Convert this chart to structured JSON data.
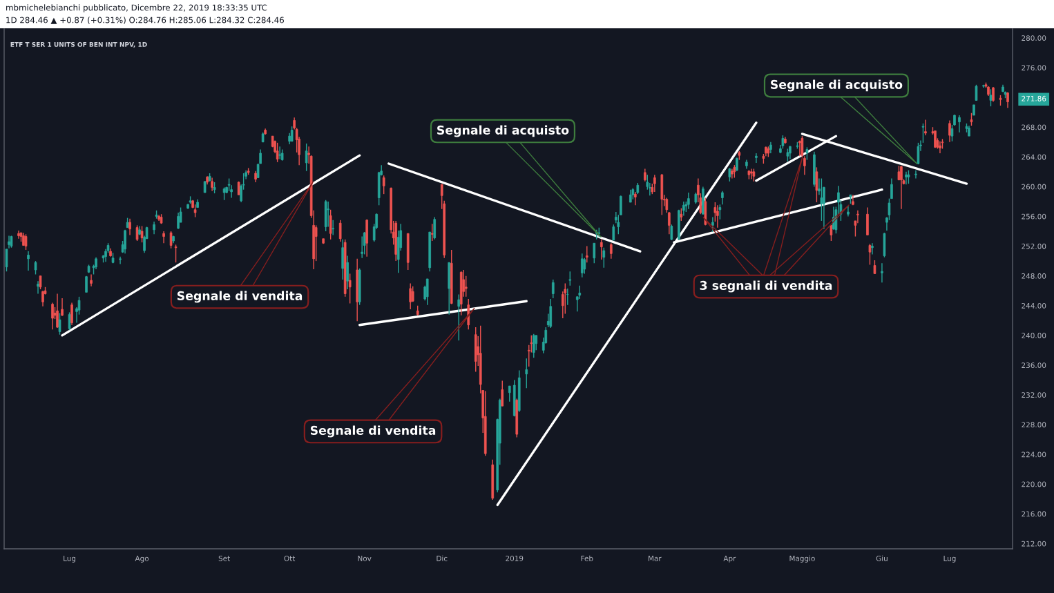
{
  "chart_data": {
    "type": "candlestick",
    "title": "ETF T SER 1 UNITS OF BEN INT NPV, 1D",
    "x": [
      "2018-06-06",
      "2018-06-07",
      "2018-06-08",
      "2018-06-11",
      "2018-06-12",
      "2018-06-13",
      "2018-06-14",
      "2018-06-15",
      "2018-06-18",
      "2018-06-19",
      "2018-06-20",
      "2018-06-21",
      "2018-06-22",
      "2018-06-25",
      "2018-06-26",
      "2018-06-27",
      "2018-06-28",
      "2018-06-29",
      "2018-07-02",
      "2018-07-03",
      "2018-07-05",
      "2018-07-06",
      "2018-07-09",
      "2018-07-10",
      "2018-07-11",
      "2018-07-12",
      "2018-07-13",
      "2018-07-16",
      "2018-07-17",
      "2018-07-18",
      "2018-07-19",
      "2018-07-20",
      "2018-07-23",
      "2018-07-24",
      "2018-07-25",
      "2018-07-26",
      "2018-07-27",
      "2018-07-30",
      "2018-07-31",
      "2018-08-01",
      "2018-08-02",
      "2018-08-03",
      "2018-08-06",
      "2018-08-07",
      "2018-08-08",
      "2018-08-09",
      "2018-08-10",
      "2018-08-13",
      "2018-08-14",
      "2018-08-15",
      "2018-08-16",
      "2018-08-17",
      "2018-08-20",
      "2018-08-21",
      "2018-08-22",
      "2018-08-23",
      "2018-08-24",
      "2018-08-27",
      "2018-08-28",
      "2018-08-29",
      "2018-08-30",
      "2018-08-31",
      "2018-09-04",
      "2018-09-05",
      "2018-09-06",
      "2018-09-07",
      "2018-09-10",
      "2018-09-11",
      "2018-09-12",
      "2018-09-13",
      "2018-09-14",
      "2018-09-17",
      "2018-09-18",
      "2018-09-19",
      "2018-09-20",
      "2018-09-21",
      "2018-09-24",
      "2018-09-25",
      "2018-09-26",
      "2018-09-27",
      "2018-09-28",
      "2018-10-01",
      "2018-10-02",
      "2018-10-03",
      "2018-10-04",
      "2018-10-05",
      "2018-10-08",
      "2018-10-09",
      "2018-10-10",
      "2018-10-11",
      "2018-10-12",
      "2018-10-15",
      "2018-10-16",
      "2018-10-17",
      "2018-10-18",
      "2018-10-19",
      "2018-10-22",
      "2018-10-23",
      "2018-10-24",
      "2018-10-25",
      "2018-10-26",
      "2018-10-29",
      "2018-10-30",
      "2018-10-31",
      "2018-11-01",
      "2018-11-02",
      "2018-11-05",
      "2018-11-06",
      "2018-11-07",
      "2018-11-08",
      "2018-11-09",
      "2018-11-12",
      "2018-11-13",
      "2018-11-14",
      "2018-11-15",
      "2018-11-16",
      "2018-11-19",
      "2018-11-20",
      "2018-11-21",
      "2018-11-23",
      "2018-11-26",
      "2018-11-27",
      "2018-11-28",
      "2018-11-29",
      "2018-11-30",
      "2018-12-03",
      "2018-12-04",
      "2018-12-06",
      "2018-12-07",
      "2018-12-10",
      "2018-12-11",
      "2018-12-12",
      "2018-12-13",
      "2018-12-14",
      "2018-12-17",
      "2018-12-18",
      "2018-12-19",
      "2018-12-20",
      "2018-12-21",
      "2018-12-24",
      "2018-12-26",
      "2018-12-27",
      "2018-12-28",
      "2018-12-31",
      "2019-01-02",
      "2019-01-03",
      "2019-01-04",
      "2019-01-07",
      "2019-01-08",
      "2019-01-09",
      "2019-01-10",
      "2019-01-11",
      "2019-01-14",
      "2019-01-15",
      "2019-01-16",
      "2019-01-17",
      "2019-01-18",
      "2019-01-22",
      "2019-01-23",
      "2019-01-24",
      "2019-01-25",
      "2019-01-28",
      "2019-01-29",
      "2019-01-30",
      "2019-01-31",
      "2019-02-01",
      "2019-02-04",
      "2019-02-05",
      "2019-02-06",
      "2019-02-07",
      "2019-02-08",
      "2019-02-11",
      "2019-02-12",
      "2019-02-13",
      "2019-02-14",
      "2019-02-15",
      "2019-02-19",
      "2019-02-20",
      "2019-02-21",
      "2019-02-22",
      "2019-02-25",
      "2019-02-26",
      "2019-02-27",
      "2019-02-28",
      "2019-03-01",
      "2019-03-04",
      "2019-03-05",
      "2019-03-06",
      "2019-03-07",
      "2019-03-08",
      "2019-03-11",
      "2019-03-12",
      "2019-03-13",
      "2019-03-14",
      "2019-03-15",
      "2019-03-18",
      "2019-03-19",
      "2019-03-20",
      "2019-03-21",
      "2019-03-22",
      "2019-03-25",
      "2019-03-26",
      "2019-03-27",
      "2019-03-28",
      "2019-03-29",
      "2019-04-01",
      "2019-04-02",
      "2019-04-03",
      "2019-04-04",
      "2019-04-05",
      "2019-04-08",
      "2019-04-09",
      "2019-04-10",
      "2019-04-11",
      "2019-04-12",
      "2019-04-15",
      "2019-04-16",
      "2019-04-17",
      "2019-04-18",
      "2019-04-22",
      "2019-04-23",
      "2019-04-24",
      "2019-04-25",
      "2019-04-26",
      "2019-04-29",
      "2019-04-30",
      "2019-05-01",
      "2019-05-02",
      "2019-05-03",
      "2019-05-06",
      "2019-05-07",
      "2019-05-08",
      "2019-05-09",
      "2019-05-10",
      "2019-05-13",
      "2019-05-14",
      "2019-05-15",
      "2019-05-16",
      "2019-05-17",
      "2019-05-20",
      "2019-05-21",
      "2019-05-22",
      "2019-05-23",
      "2019-05-24",
      "2019-05-28",
      "2019-05-29",
      "2019-05-30",
      "2019-05-31",
      "2019-06-03",
      "2019-06-04",
      "2019-06-05",
      "2019-06-06",
      "2019-06-07",
      "2019-06-10",
      "2019-06-11",
      "2019-06-12",
      "2019-06-13",
      "2019-06-14",
      "2019-06-17",
      "2019-06-18",
      "2019-06-19",
      "2019-06-20",
      "2019-06-21",
      "2019-06-24",
      "2019-06-25",
      "2019-06-26",
      "2019-06-27",
      "2019-06-28",
      "2019-07-01",
      "2019-07-02",
      "2019-07-03",
      "2019-07-05",
      "2019-07-08",
      "2019-07-09",
      "2019-07-10",
      "2019-07-11",
      "2019-07-12",
      "2019-07-15",
      "2019-07-16",
      "2019-07-17",
      "2019-07-18",
      "2019-07-19",
      "2019-07-22",
      "2019-07-23",
      "2019-07-24",
      "2019-07-25"
    ],
    "ohlc": [
      [
        249.2,
        251.6,
        248.6,
        251.6
      ],
      [
        252.2,
        253.4,
        251.7,
        252.6
      ],
      [
        252.0,
        253.4,
        251.8,
        253.3
      ],
      [
        253.7,
        254.1,
        253.0,
        253.4
      ],
      [
        253.8,
        253.8,
        252.6,
        253.3
      ],
      [
        253.4,
        253.8,
        252.1,
        252.1
      ],
      [
        253.3,
        253.6,
        251.5,
        252.0
      ],
      [
        250.3,
        251.3,
        248.7,
        250.8
      ],
      [
        248.8,
        250.0,
        248.2,
        249.8
      ],
      [
        246.6,
        247.3,
        245.6,
        246.9
      ],
      [
        248.0,
        248.0,
        246.2,
        246.5
      ],
      [
        245.9,
        246.0,
        243.9,
        244.5
      ],
      [
        246.0,
        246.5,
        245.5,
        245.6
      ],
      [
        244.2,
        244.4,
        240.8,
        242.3
      ],
      [
        243.0,
        243.8,
        242.2,
        242.7
      ],
      [
        243.3,
        245.6,
        241.0,
        241.1
      ],
      [
        240.5,
        243.0,
        240.1,
        242.1
      ],
      [
        243.5,
        245.0,
        242.6,
        242.7
      ],
      [
        240.9,
        243.1,
        240.7,
        242.8
      ],
      [
        244.1,
        244.4,
        241.4,
        241.7
      ],
      [
        243.2,
        243.8,
        241.7,
        243.6
      ],
      [
        243.4,
        245.2,
        242.8,
        244.7
      ],
      [
        245.8,
        248.0,
        245.8,
        247.9
      ],
      [
        248.5,
        249.5,
        248.4,
        249.3
      ],
      [
        247.4,
        248.2,
        246.6,
        247.0
      ],
      [
        249.1,
        249.5,
        248.2,
        249.3
      ],
      [
        249.2,
        250.5,
        248.9,
        250.3
      ],
      [
        250.4,
        250.8,
        249.8,
        250.7
      ],
      [
        250.6,
        251.6,
        249.9,
        251.3
      ],
      [
        251.4,
        252.4,
        251.1,
        252.1
      ],
      [
        251.3,
        251.7,
        250.6,
        250.7
      ],
      [
        249.8,
        251.1,
        249.7,
        250.4
      ],
      [
        250.2,
        250.6,
        249.6,
        250.3
      ],
      [
        251.2,
        252.7,
        251.1,
        252.2
      ],
      [
        251.6,
        254.2,
        251.0,
        254.1
      ],
      [
        254.5,
        255.8,
        254.5,
        255.2
      ],
      [
        255.2,
        255.7,
        253.5,
        254.3
      ],
      [
        254.5,
        254.8,
        252.7,
        252.9
      ],
      [
        253.6,
        254.7,
        253.5,
        254.2
      ],
      [
        254.0,
        254.7,
        252.5,
        253.1
      ],
      [
        251.4,
        253.4,
        251.1,
        253.2
      ],
      [
        253.0,
        254.6,
        253.0,
        254.5
      ],
      [
        254.2,
        255.3,
        253.6,
        254.9
      ],
      [
        256.0,
        256.8,
        255.7,
        256.2
      ],
      [
        256.0,
        256.2,
        255.4,
        255.6
      ],
      [
        255.9,
        256.3,
        255.0,
        255.1
      ],
      [
        253.7,
        254.0,
        252.4,
        253.3
      ],
      [
        253.8,
        254.0,
        251.7,
        252.1
      ],
      [
        252.7,
        253.4,
        252.4,
        253.3
      ],
      [
        251.9,
        252.2,
        249.8,
        251.8
      ],
      [
        254.4,
        256.5,
        254.3,
        256.0
      ],
      [
        255.2,
        257.2,
        255.2,
        256.6
      ],
      [
        257.1,
        257.7,
        257.0,
        257.6
      ],
      [
        257.9,
        258.7,
        257.7,
        258.1
      ],
      [
        258.1,
        258.2,
        257.1,
        257.2
      ],
      [
        256.9,
        257.6,
        255.9,
        256.5
      ],
      [
        257.2,
        258.3,
        257.2,
        257.9
      ],
      [
        259.2,
        260.7,
        259.2,
        260.7
      ],
      [
        261.3,
        261.4,
        260.3,
        260.6
      ],
      [
        260.8,
        261.8,
        260.7,
        261.4
      ],
      [
        260.7,
        261.2,
        259.4,
        259.9
      ],
      [
        259.6,
        260.6,
        259.1,
        259.9
      ],
      [
        259.2,
        259.9,
        258.2,
        259.7
      ],
      [
        259.2,
        260.0,
        259.1,
        259.9
      ],
      [
        260.2,
        261.1,
        259.4,
        260.3
      ],
      [
        259.3,
        260.2,
        258.5,
        259.6
      ],
      [
        260.6,
        260.7,
        258.9,
        258.9
      ],
      [
        258.1,
        260.3,
        257.9,
        260.1
      ],
      [
        260.2,
        261.8,
        259.6,
        260.3
      ],
      [
        261.4,
        262.2,
        261.0,
        261.9
      ],
      [
        262.1,
        262.5,
        261.6,
        261.9
      ],
      [
        261.8,
        262.1,
        260.6,
        261.0
      ],
      [
        261.2,
        263.1,
        261.2,
        263.0
      ],
      [
        263.1,
        265.0,
        263.1,
        264.5
      ],
      [
        266.0,
        267.3,
        266.0,
        267.1
      ],
      [
        267.6,
        267.8,
        267.0,
        267.1
      ],
      [
        266.8,
        266.8,
        265.3,
        265.4
      ],
      [
        266.1,
        266.2,
        264.5,
        264.7
      ],
      [
        264.8,
        265.9,
        263.3,
        263.7
      ],
      [
        264.2,
        265.4,
        263.7,
        264.3
      ],
      [
        263.6,
        265.0,
        263.5,
        264.5
      ],
      [
        266.1,
        267.2,
        265.7,
        266.8
      ],
      [
        266.1,
        268.1,
        266.1,
        267.6
      ],
      [
        268.9,
        269.3,
        267.7,
        267.9
      ],
      [
        267.7,
        267.9,
        264.6,
        266.3
      ],
      [
        266.4,
        266.7,
        262.9,
        264.3
      ],
      [
        263.2,
        265.8,
        262.1,
        264.8
      ],
      [
        264.5,
        265.4,
        263.1,
        264.3
      ],
      [
        264.1,
        264.2,
        255.8,
        256.1
      ],
      [
        254.8,
        256.8,
        248.9,
        250.3
      ],
      [
        254.5,
        254.8,
        250.0,
        253.3
      ],
      [
        253.0,
        253.0,
        252.3,
        252.4
      ],
      [
        254.6,
        258.2,
        254.0,
        258.0
      ],
      [
        256.9,
        258.0,
        254.6,
        257.0
      ],
      [
        256.1,
        256.9,
        252.9,
        253.7
      ],
      [
        254.3,
        255.5,
        253.5,
        254.4
      ],
      [
        255.1,
        255.5,
        252.6,
        253.0
      ],
      [
        249.0,
        252.9,
        247.5,
        251.8
      ],
      [
        252.5,
        252.9,
        245.2,
        245.6
      ],
      [
        247.3,
        250.7,
        246.2,
        249.8
      ],
      [
        247.4,
        248.3,
        244.3,
        246.5
      ],
      [
        248.8,
        250.3,
        241.9,
        244.5
      ],
      [
        244.5,
        249.0,
        244.1,
        248.8
      ],
      [
        251.0,
        253.3,
        250.4,
        251.2
      ],
      [
        252.1,
        253.9,
        250.9,
        253.8
      ],
      [
        255.5,
        255.6,
        250.6,
        252.4
      ],
      [
        252.8,
        255.0,
        252.6,
        254.6
      ],
      [
        254.5,
        256.4,
        254.3,
        256.3
      ],
      [
        258.5,
        262.0,
        257.5,
        261.9
      ],
      [
        261.6,
        262.9,
        261.5,
        262.1
      ],
      [
        261.2,
        261.5,
        259.0,
        260.1
      ],
      [
        259.8,
        259.9,
        253.7,
        254.2
      ],
      [
        253.9,
        255.4,
        252.2,
        253.1
      ],
      [
        255.1,
        255.4,
        250.0,
        250.9
      ],
      [
        250.2,
        254.1,
        248.4,
        253.2
      ],
      [
        251.8,
        255.0,
        251.4,
        254.1
      ],
      [
        253.7,
        253.7,
        248.8,
        249.8
      ],
      [
        246.3,
        247.0,
        243.5,
        244.5
      ],
      [
        245.9,
        246.6,
        244.5,
        244.6
      ],
      [
        243.3,
        244.0,
        242.7,
        242.8
      ],
      [
        244.9,
        246.7,
        244.7,
        246.5
      ],
      [
        245.2,
        247.6,
        244.1,
        247.6
      ],
      [
        249.1,
        253.9,
        248.6,
        253.9
      ],
      [
        253.7,
        255.0,
        252.7,
        253.6
      ],
      [
        253.1,
        255.9,
        252.9,
        255.6
      ],
      [
        260.3,
        260.3,
        257.0,
        258.8
      ],
      [
        257.7,
        258.1,
        250.4,
        250.8
      ],
      [
        246.3,
        249.8,
        242.8,
        249.8
      ],
      [
        249.7,
        251.5,
        244.2,
        244.3
      ],
      [
        243.9,
        245.5,
        239.3,
        244.8
      ],
      [
        248.5,
        248.6,
        242.7,
        244.2
      ],
      [
        247.5,
        248.8,
        245.2,
        245.9
      ],
      [
        246.5,
        248.0,
        245.2,
        246.3
      ],
      [
        244.1,
        244.9,
        240.8,
        241.4
      ],
      [
        240.1,
        241.1,
        235.1,
        236.5
      ],
      [
        238.5,
        239.9,
        235.9,
        237.4
      ],
      [
        237.6,
        241.3,
        232.2,
        233.4
      ],
      [
        232.6,
        232.6,
        226.9,
        228.9
      ],
      [
        229.1,
        232.5,
        223.8,
        224.1
      ],
      [
        222.6,
        223.3,
        217.9,
        218.1
      ],
      [
        219.2,
        228.8,
        218.9,
        228.7
      ],
      [
        225.5,
        231.5,
        222.6,
        231.3
      ],
      [
        232.7,
        233.9,
        230.5,
        230.5
      ],
      [
        232.3,
        233.2,
        231.1,
        233.2
      ],
      [
        229.2,
        234.0,
        229.1,
        233.3
      ],
      [
        231.3,
        231.5,
        226.3,
        226.7
      ],
      [
        229.9,
        235.3,
        229.7,
        234.3
      ],
      [
        234.8,
        236.9,
        232.9,
        235.4
      ],
      [
        238.0,
        238.7,
        235.8,
        237.9
      ],
      [
        239.0,
        240.0,
        237.7,
        238.9
      ],
      [
        237.7,
        240.2,
        237.0,
        240.0
      ],
      [
        238.9,
        240.0,
        238.0,
        240.0
      ],
      [
        238.0,
        239.7,
        237.6,
        239.1
      ],
      [
        239.0,
        241.1,
        238.9,
        240.7
      ],
      [
        241.4,
        242.9,
        241.1,
        241.9
      ],
      [
        241.2,
        244.9,
        241.0,
        243.9
      ],
      [
        245.6,
        247.5,
        245.0,
        247.1
      ],
      [
        245.5,
        245.9,
        242.3,
        244.0
      ],
      [
        246.2,
        247.0,
        242.9,
        245.7
      ],
      [
        245.5,
        246.3,
        244.1,
        245.5
      ],
      [
        247.4,
        248.6,
        246.7,
        247.5
      ],
      [
        244.8,
        245.2,
        243.2,
        245.2
      ],
      [
        245.4,
        246.7,
        244.9,
        245.7
      ],
      [
        248.4,
        251.0,
        247.8,
        250.3
      ],
      [
        248.9,
        250.4,
        248.3,
        250.2
      ],
      [
        250.7,
        252.0,
        249.8,
        250.5
      ],
      [
        250.4,
        252.4,
        249.7,
        252.4
      ],
      [
        253.7,
        254.2,
        252.9,
        253.9
      ],
      [
        253.7,
        254.5,
        253.2,
        253.8
      ],
      [
        252.5,
        252.9,
        250.2,
        251.9
      ],
      [
        250.5,
        251.8,
        249.1,
        251.4
      ],
      [
        252.2,
        252.4,
        250.3,
        251.0
      ],
      [
        252.8,
        254.9,
        252.8,
        254.6
      ],
      [
        255.5,
        256.6,
        255.1,
        255.9
      ],
      [
        254.6,
        256.2,
        253.6,
        255.2
      ],
      [
        256.2,
        258.8,
        256.2,
        258.7
      ],
      [
        257.9,
        259.6,
        257.9,
        258.9
      ],
      [
        258.9,
        259.8,
        258.3,
        259.6
      ],
      [
        259.0,
        259.3,
        257.5,
        258.6
      ],
      [
        259.2,
        260.5,
        259.0,
        260.2
      ],
      [
        261.9,
        262.4,
        260.7,
        260.9
      ],
      [
        260.0,
        261.6,
        259.6,
        260.6
      ],
      [
        259.8,
        260.5,
        258.8,
        259.9
      ],
      [
        259.9,
        260.4,
        259.0,
        259.3
      ],
      [
        261.2,
        261.6,
        259.3,
        260.4
      ],
      [
        261.6,
        261.7,
        256.2,
        258.3
      ],
      [
        258.3,
        258.9,
        257.4,
        258.2
      ],
      [
        258.3,
        258.5,
        256.5,
        256.9
      ],
      [
        256.5,
        256.6,
        253.6,
        254.8
      ],
      [
        252.9,
        254.9,
        252.8,
        254.7
      ],
      [
        252.9,
        256.9,
        252.9,
        256.8
      ],
      [
        256.3,
        257.1,
        255.4,
        255.9
      ],
      [
        256.8,
        258.0,
        256.1,
        257.5
      ],
      [
        257.4,
        258.0,
        256.6,
        257.6
      ],
      [
        257.6,
        259.2,
        257.0,
        258.4
      ],
      [
        257.9,
        259.2,
        257.7,
        259.0
      ],
      [
        260.2,
        261.1,
        257.9,
        258.9
      ],
      [
        258.5,
        259.1,
        256.3,
        256.5
      ],
      [
        256.3,
        260.0,
        256.3,
        259.7
      ],
      [
        258.0,
        258.5,
        254.8,
        254.9
      ],
      [
        254.8,
        255.9,
        253.9,
        255.2
      ],
      [
        257.2,
        257.9,
        255.3,
        256.5
      ],
      [
        256.7,
        257.5,
        254.5,
        256.1
      ],
      [
        256.9,
        257.6,
        255.6,
        257.2
      ],
      [
        258.5,
        259.4,
        257.6,
        259.2
      ],
      [
        261.3,
        262.5,
        260.7,
        262.4
      ],
      [
        262.1,
        262.4,
        261.1,
        261.7
      ],
      [
        262.6,
        262.9,
        261.2,
        262.0
      ],
      [
        262.2,
        263.9,
        262.1,
        263.8
      ],
      [
        264.6,
        264.8,
        263.6,
        264.2
      ],
      [
        262.8,
        263.6,
        262.4,
        263.3
      ],
      [
        262.1,
        262.2,
        261.0,
        261.6
      ],
      [
        262.0,
        262.4,
        261.0,
        261.8
      ],
      [
        262.0,
        262.4,
        260.7,
        261.4
      ],
      [
        263.9,
        264.5,
        263.2,
        264.1
      ],
      [
        264.1,
        264.4,
        263.1,
        263.8
      ],
      [
        265.3,
        265.4,
        264.1,
        264.5
      ],
      [
        265.1,
        265.4,
        264.0,
        264.5
      ],
      [
        265.0,
        266.0,
        264.5,
        265.6
      ],
      [
        264.6,
        265.6,
        264.5,
        265.1
      ],
      [
        265.5,
        266.9,
        265.1,
        266.5
      ],
      [
        266.4,
        266.7,
        265.8,
        265.9
      ],
      [
        264.1,
        265.1,
        263.4,
        264.6
      ],
      [
        264.5,
        265.5,
        263.7,
        265.4
      ],
      [
        265.4,
        266.0,
        265.1,
        265.5
      ],
      [
        266.1,
        266.2,
        264.1,
        265.9
      ],
      [
        266.5,
        266.8,
        263.9,
        264.2
      ],
      [
        263.8,
        264.1,
        261.6,
        262.8
      ],
      [
        264.5,
        265.3,
        263.6,
        265.0
      ],
      [
        260.3,
        264.7,
        260.0,
        264.3
      ],
      [
        262.0,
        262.6,
        257.9,
        259.5
      ],
      [
        259.4,
        261.1,
        258.9,
        259.7
      ],
      [
        257.7,
        261.1,
        255.4,
        258.5
      ],
      [
        257.7,
        260.0,
        254.3,
        259.9
      ],
      [
        254.8,
        254.8,
        252.7,
        253.5
      ],
      [
        254.3,
        257.3,
        254.2,
        255.9
      ],
      [
        254.2,
        257.3,
        253.7,
        256.9
      ],
      [
        257.9,
        260.1,
        256.3,
        259.2
      ],
      [
        256.3,
        258.2,
        255.4,
        257.6
      ],
      [
        256.3,
        257.4,
        256.0,
        256.6
      ],
      [
        258.6,
        258.9,
        257.7,
        258.9
      ],
      [
        258.0,
        258.9,
        257.5,
        257.6
      ],
      [
        255.4,
        255.4,
        253.3,
        254.8
      ],
      [
        256.3,
        256.8,
        255.1,
        256.2
      ],
      [
        256.3,
        257.2,
        253.5,
        253.5
      ],
      [
        252.1,
        252.3,
        249.5,
        251.2
      ],
      [
        251.8,
        252.4,
        250.9,
        252.0
      ],
      [
        249.4,
        250.1,
        248.3,
        248.3
      ],
      [
        248.4,
        249.7,
        247.1,
        248.6
      ],
      [
        250.7,
        253.8,
        250.5,
        253.7
      ],
      [
        255.2,
        255.9,
        254.1,
        255.8
      ],
      [
        256.2,
        258.4,
        255.5,
        257.8
      ],
      [
        258.4,
        261.1,
        258.4,
        260.3
      ],
      [
        262.0,
        262.8,
        260.9,
        260.9
      ],
      [
        262.7,
        262.8,
        257.0,
        260.9
      ],
      [
        260.8,
        261.0,
        260.3,
        260.4
      ],
      [
        261.3,
        262.0,
        260.3,
        261.6
      ],
      [
        261.3,
        262.2,
        260.4,
        261.6
      ],
      [
        261.6,
        262.2,
        261.1,
        261.7
      ],
      [
        263.1,
        265.9,
        263.0,
        265.4
      ],
      [
        265.5,
        266.2,
        264.8,
        265.6
      ],
      [
        268.0,
        268.5,
        265.9,
        268.1
      ],
      [
        267.4,
        269.0,
        266.9,
        267.2
      ],
      [
        267.4,
        268.0,
        267.0,
        267.2
      ],
      [
        267.5,
        267.5,
        265.2,
        265.3
      ],
      [
        266.2,
        266.5,
        265.1,
        265.3
      ],
      [
        265.5,
        266.1,
        264.5,
        265.2
      ],
      [
        266.0,
        266.4,
        265.1,
        265.9
      ],
      [
        268.5,
        268.9,
        266.0,
        266.9
      ],
      [
        266.8,
        268.3,
        266.1,
        267.8
      ],
      [
        268.3,
        269.7,
        268.2,
        269.6
      ],
      [
        268.7,
        269.6,
        267.3,
        269.3
      ],
      [
        267.8,
        268.5,
        267.3,
        268.1
      ],
      [
        266.8,
        268.2,
        266.8,
        267.9
      ],
      [
        269.0,
        269.9,
        268.2,
        268.7
      ],
      [
        269.6,
        271.0,
        269.6,
        271.0
      ],
      [
        271.6,
        273.7,
        271.6,
        273.5
      ],
      [
        273.5,
        273.7,
        273.3,
        273.6
      ],
      [
        273.7,
        274.0,
        273.3,
        273.5
      ],
      [
        273.4,
        273.5,
        272.2,
        272.4
      ],
      [
        271.6,
        273.1,
        270.8,
        272.3
      ],
      [
        273.3,
        273.4,
        271.4,
        271.6
      ],
      [
        271.9,
        272.3,
        270.9,
        271.7
      ],
      [
        272.8,
        273.7,
        272.7,
        273.4
      ],
      [
        272.4,
        272.8,
        271.9,
        272.7
      ],
      [
        272.6,
        272.7,
        270.6,
        271.4
      ]
    ],
    "colors": [
      "#26a69a",
      "#26a69a",
      "#26a69a",
      "#ef5350",
      "#ef5350",
      "#ef5350",
      "#ef5350",
      "#26a69a",
      "#26a69a",
      "#26a69a",
      "#ef5350",
      "#ef5350",
      "#ef5350",
      "#ef5350",
      "#ef5350",
      "#ef5350",
      "#26a69a",
      "#ef5350",
      "#26a69a",
      "#ef5350",
      "#26a69a",
      "#26a69a",
      "#26a69a",
      "#26a69a",
      "#ef5350",
      "#26a69a",
      "#26a69a",
      "#26a69a",
      "#26a69a",
      "#26a69a",
      "#ef5350",
      "#26a69a",
      "#26a69a",
      "#26a69a",
      "#26a69a",
      "#26a69a",
      "#ef5350",
      "#ef5350",
      "#26a69a",
      "#ef5350",
      "#26a69a",
      "#26a69a",
      "#26a69a",
      "#26a69a",
      "#ef5350",
      "#ef5350",
      "#ef5350",
      "#ef5350",
      "#26a69a",
      "#ef5350",
      "#26a69a",
      "#26a69a",
      "#26a69a",
      "#26a69a",
      "#ef5350",
      "#ef5350",
      "#26a69a",
      "#26a69a",
      "#ef5350",
      "#26a69a",
      "#ef5350",
      "#26a69a",
      "#26a69a",
      "#26a69a",
      "#26a69a",
      "#26a69a",
      "#ef5350",
      "#26a69a",
      "#26a69a",
      "#26a69a",
      "#ef5350",
      "#ef5350",
      "#26a69a",
      "#26a69a",
      "#26a69a",
      "#ef5350",
      "#ef5350",
      "#ef5350",
      "#ef5350",
      "#26a69a",
      "#26a69a",
      "#26a69a",
      "#26a69a",
      "#ef5350",
      "#ef5350",
      "#ef5350",
      "#26a69a",
      "#ef5350",
      "#ef5350",
      "#ef5350",
      "#ef5350",
      "#ef5350",
      "#26a69a",
      "#26a69a",
      "#ef5350",
      "#26a69a",
      "#ef5350",
      "#26a69a",
      "#ef5350",
      "#26a69a",
      "#ef5350",
      "#ef5350",
      "#26a69a",
      "#26a69a",
      "#26a69a",
      "#ef5350",
      "#26a69a",
      "#26a69a",
      "#26a69a",
      "#26a69a",
      "#ef5350",
      "#ef5350",
      "#ef5350",
      "#ef5350",
      "#26a69a",
      "#26a69a",
      "#ef5350",
      "#ef5350",
      "#ef5350",
      "#ef5350",
      "#26a69a",
      "#26a69a",
      "#26a69a",
      "#ef5350",
      "#26a69a",
      "#ef5350",
      "#ef5350",
      "#26a69a",
      "#ef5350",
      "#26a69a",
      "#ef5350",
      "#ef5350",
      "#ef5350",
      "#ef5350",
      "#ef5350",
      "#ef5350",
      "#ef5350",
      "#ef5350",
      "#ef5350",
      "#ef5350",
      "#26a69a",
      "#26a69a",
      "#ef5350",
      "#26a69a",
      "#26a69a",
      "#ef5350",
      "#26a69a",
      "#26a69a",
      "#ef5350",
      "#ef5350",
      "#26a69a",
      "#26a69a",
      "#26a69a",
      "#26a69a",
      "#26a69a",
      "#26a69a",
      "#26a69a",
      "#ef5350",
      "#ef5350",
      "#26a69a",
      "#26a69a",
      "#26a69a",
      "#26a69a",
      "#26a69a",
      "#26a69a",
      "#ef5350",
      "#26a69a",
      "#26a69a",
      "#26a69a",
      "#ef5350",
      "#26a69a",
      "#ef5350",
      "#26a69a",
      "#26a69a",
      "#26a69a",
      "#26a69a",
      "#26a69a",
      "#26a69a",
      "#ef5350",
      "#26a69a",
      "#ef5350",
      "#26a69a",
      "#26a69a",
      "#ef5350",
      "#ef5350",
      "#ef5350",
      "#ef5350",
      "#ef5350",
      "#ef5350",
      "#26a69a",
      "#26a69a",
      "#ef5350",
      "#26a69a",
      "#26a69a",
      "#26a69a",
      "#26a69a",
      "#ef5350",
      "#ef5350",
      "#26a69a",
      "#ef5350",
      "#26a69a",
      "#ef5350",
      "#ef5350",
      "#26a69a",
      "#26a69a",
      "#26a69a",
      "#ef5350",
      "#ef5350",
      "#26a69a",
      "#ef5350",
      "#26a69a",
      "#ef5350",
      "#ef5350",
      "#ef5350",
      "#26a69a",
      "#ef5350",
      "#ef5350",
      "#ef5350",
      "#26a69a",
      "#26a69a",
      "#26a69a",
      "#ef5350",
      "#26a69a",
      "#26a69a",
      "#26a69a",
      "#ef5350",
      "#ef5350",
      "#ef5350",
      "#26a69a",
      "#26a69a",
      "#ef5350",
      "#26a69a",
      "#26a69a",
      "#26a69a",
      "#ef5350",
      "#26a69a",
      "#26a69a",
      "#26a69a",
      "#26a69a",
      "#26a69a",
      "#26a69a",
      "#ef5350",
      "#ef5350",
      "#ef5350",
      "#ef5350",
      "#ef5350",
      "#26a69a",
      "#ef5350",
      "#26a69a",
      "#26a69a",
      "#26a69a",
      "#26a69a",
      "#26a69a",
      "#ef5350",
      "#ef5350",
      "#ef5350",
      "#26a69a",
      "#26a69a",
      "#26a69a",
      "#26a69a",
      "#26a69a",
      "#26a69a",
      "#ef5350",
      "#ef5350",
      "#ef5350",
      "#ef5350",
      "#ef5350",
      "#ef5350",
      "#ef5350",
      "#26a69a",
      "#26a69a",
      "#26a69a",
      "#26a69a",
      "#26a69a",
      "#ef5350",
      "#26a69a",
      "#26a69a",
      "#26a69a",
      "#ef5350",
      "#ef5350",
      "#26a69a",
      "#ef5350",
      "#ef5350",
      "#26a69a",
      "#26a69a",
      "#ef5350"
    ],
    "series": [
      {
        "type": "line",
        "x": [
          "2018-06-29",
          "2018-10-30"
        ],
        "values": [
          240.0,
          264.2
        ],
        "color": "#ffffff"
      },
      {
        "type": "line",
        "x": [
          "2018-11-11",
          "2019-02-23"
        ],
        "values": [
          263.1,
          251.3
        ],
        "color": "#ffffff"
      },
      {
        "type": "line",
        "x": [
          "2018-10-30",
          "2019-01-07"
        ],
        "values": [
          241.4,
          244.6
        ],
        "color": "#ffffff"
      },
      {
        "type": "line",
        "x": [
          "2018-12-26",
          "2019-04-12"
        ],
        "values": [
          217.2,
          268.6
        ],
        "color": "#ffffff"
      },
      {
        "type": "line",
        "x": [
          "2019-03-09",
          "2019-06-03"
        ],
        "values": [
          252.5,
          259.6
        ],
        "color": "#ffffff"
      },
      {
        "type": "line",
        "x": [
          "2019-04-12",
          "2019-05-15"
        ],
        "values": [
          260.8,
          266.8
        ],
        "color": "#ffffff"
      },
      {
        "type": "line",
        "x": [
          "2019-05-01",
          "2019-07-08"
        ],
        "values": [
          267.1,
          260.4
        ],
        "color": "#ffffff"
      }
    ],
    "xlim": [
      "2018-06-05",
      "2019-07-27"
    ],
    "xticks": [
      {
        "value": "2018-07-02",
        "label": "Lug"
      },
      {
        "value": "2018-08-01",
        "label": "Ago"
      },
      {
        "value": "2018-09-04",
        "label": "Set"
      },
      {
        "value": "2018-10-01",
        "label": "Ott"
      },
      {
        "value": "2018-11-01",
        "label": "Nov"
      },
      {
        "value": "2018-12-03",
        "label": "Dic"
      },
      {
        "value": "2019-01-02",
        "label": "2019"
      },
      {
        "value": "2019-02-01",
        "label": "Feb"
      },
      {
        "value": "2019-03-01",
        "label": "Mar"
      },
      {
        "value": "2019-04-01",
        "label": "Apr"
      },
      {
        "value": "2019-05-01",
        "label": "Maggio"
      },
      {
        "value": "2019-06-03",
        "label": "Giu"
      },
      {
        "value": "2019-07-01",
        "label": "Lug"
      }
    ],
    "ylim": [
      211.3,
      281.2
    ],
    "yticks": [
      {
        "value": 212,
        "label": "212.00"
      },
      {
        "value": 216,
        "label": "216.00"
      },
      {
        "value": 220,
        "label": "220.00"
      },
      {
        "value": 224,
        "label": "224.00"
      },
      {
        "value": 228,
        "label": "228.00"
      },
      {
        "value": 232,
        "label": "232.00"
      },
      {
        "value": 236,
        "label": "236.00"
      },
      {
        "value": 240,
        "label": "240.00"
      },
      {
        "value": 244,
        "label": "244.00"
      },
      {
        "value": 248,
        "label": "248.00"
      },
      {
        "value": 252,
        "label": "252.00"
      },
      {
        "value": 256,
        "label": "256.00"
      },
      {
        "value": 260,
        "label": "260.00"
      },
      {
        "value": 264,
        "label": "264.00"
      },
      {
        "value": 268,
        "label": "268.00"
      },
      {
        "value": 271.86,
        "label": "271.86"
      },
      {
        "value": 276,
        "label": "276.00"
      },
      {
        "value": 280,
        "label": "280.00"
      }
    ],
    "annotations": [
      "mbmichelebianchi pubblicato, Dicembre 22, 2019 18:33:35 UTC",
      "1D 284.46 ▲ +0.87 (+0.31%) O:284.76 H:285.06 L:284.32 C:284.46",
      "Segnale di vendita",
      "Segnale di acquisto",
      "Segnale di vendita",
      "3 segnali di vendita",
      "Segnale di acquisto"
    ]
  }
}
